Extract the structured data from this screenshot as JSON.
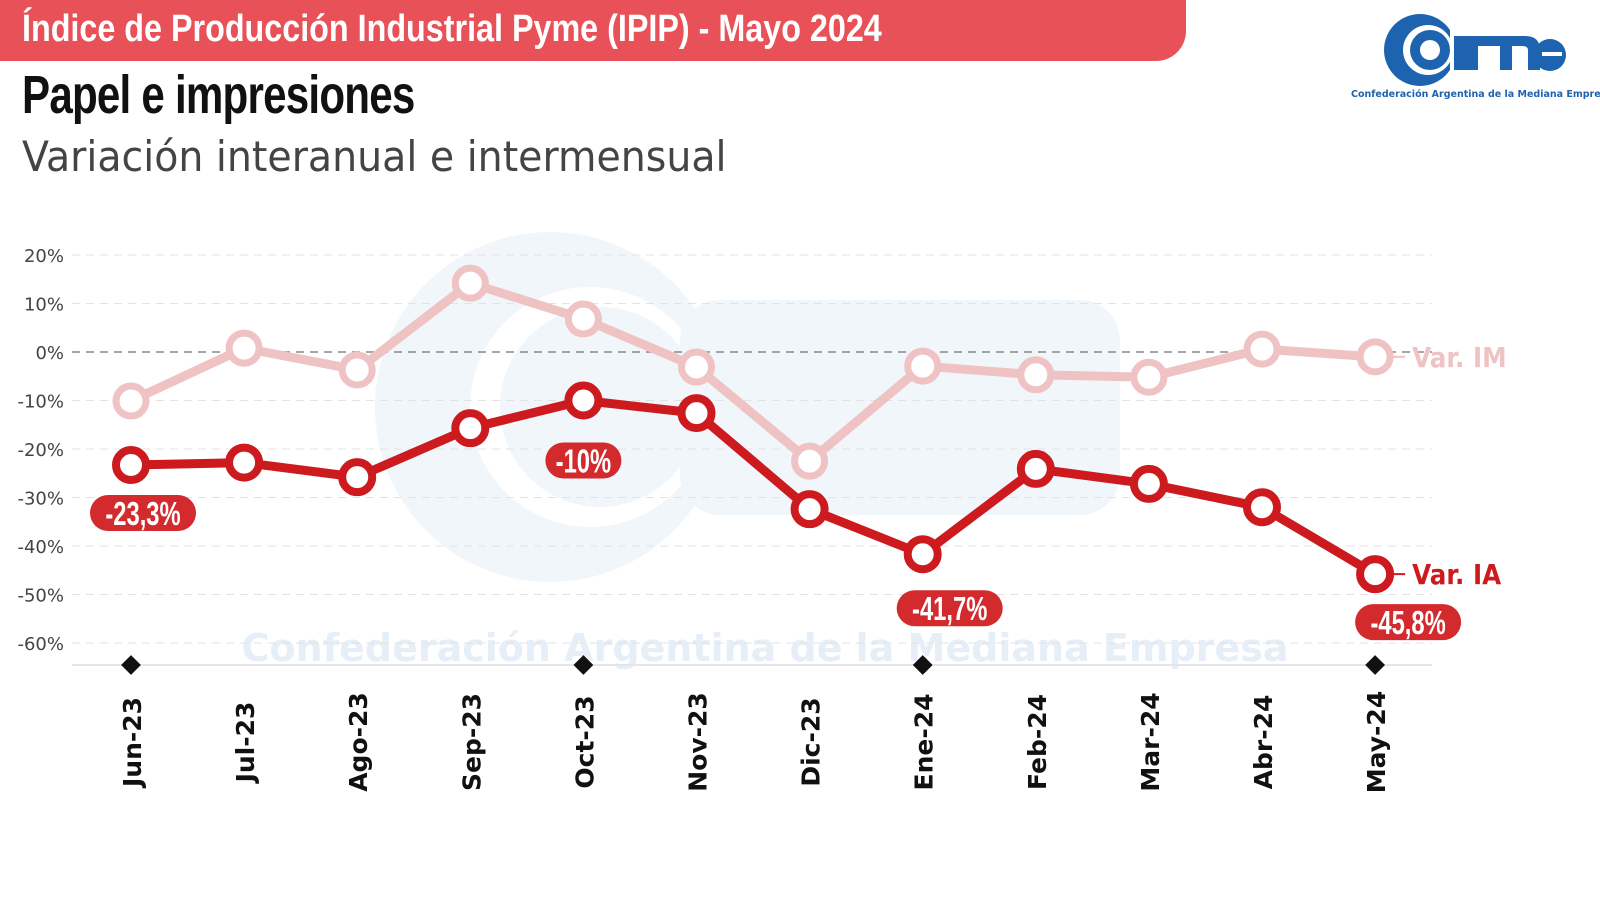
{
  "header": {
    "banner": "Índice de Producción Industrial Pyme (IPIP) - Mayo 2024",
    "title": "Papel e impresiones",
    "subtitle": "Variación interanual e intermensual"
  },
  "logo": {
    "text": "came",
    "tagline": "Confederación Argentina de la Mediana Empresa"
  },
  "watermark": "Confederación Argentina de la Mediana Empresa",
  "colors": {
    "banner": "#e85158",
    "ia": "#cc1a1f",
    "im": "#efc2c3",
    "logo": "#1e63b0",
    "label_bg": "#d32a2e"
  },
  "chart_data": {
    "type": "line",
    "title": "Papel e impresiones",
    "categories": [
      "Jun-23",
      "Jul-23",
      "Ago-23",
      "Sep-23",
      "Oct-23",
      "Nov-23",
      "Dic-23",
      "Ene-24",
      "Feb-24",
      "Mar-24",
      "Abr-24",
      "May-24"
    ],
    "series": [
      {
        "name": "Var. IM",
        "values": [
          -10.1,
          0.8,
          -3.7,
          14.2,
          6.8,
          -3.1,
          -22.5,
          -2.9,
          -4.7,
          -5.2,
          0.6,
          -1.0
        ]
      },
      {
        "name": "Var. IA",
        "values": [
          -23.3,
          -22.8,
          -25.8,
          -15.7,
          -10.0,
          -12.6,
          -32.4,
          -41.7,
          -24.1,
          -27.2,
          -32.0,
          -45.8
        ]
      }
    ],
    "data_labels": [
      {
        "series": "Var. IA",
        "index": 0,
        "text": "-23,3%"
      },
      {
        "series": "Var. IA",
        "index": 4,
        "text": "-10%"
      },
      {
        "series": "Var. IA",
        "index": 7,
        "text": "-41,7%"
      },
      {
        "series": "Var. IA",
        "index": 11,
        "text": "-45,8%"
      }
    ],
    "marked_categories": [
      0,
      4,
      7,
      11
    ],
    "yticks": [
      20,
      10,
      0,
      -10,
      -20,
      -30,
      -40,
      -50,
      -60
    ],
    "ytick_labels": [
      "20%",
      "10%",
      "0%",
      "-10%",
      "-20%",
      "-30%",
      "-40%",
      "-50%",
      "-60%"
    ],
    "ylim": [
      -65,
      20
    ],
    "grid": true,
    "legend": "right-inline"
  }
}
